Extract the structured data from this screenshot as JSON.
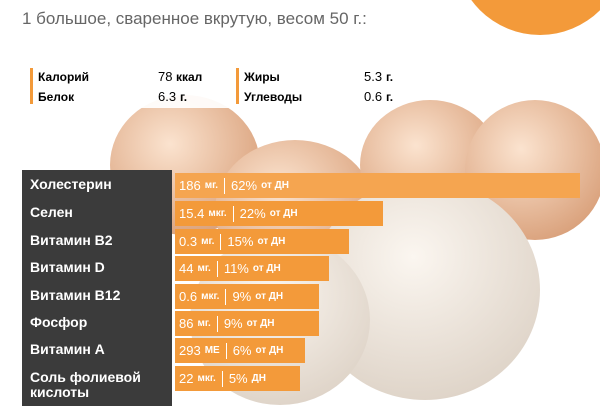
{
  "header": {
    "title": "1 большое, сваренное вкрутую, весом 50 г.:"
  },
  "summary": [
    {
      "label": "Калорий",
      "value": 78,
      "unit": "ккал"
    },
    {
      "label": "Белок",
      "value": 6.3,
      "unit": "г."
    },
    {
      "label": "Жиры",
      "value": 5.3,
      "unit": "г."
    },
    {
      "label": "Углеводы",
      "value": 0.6,
      "unit": "г."
    }
  ],
  "chart_data": {
    "type": "bar",
    "categories": [
      "Холестерин",
      "Селен",
      "Витамин B2",
      "Витамин D",
      "Витамин B12",
      "Фосфор",
      "Витамин A",
      "Соль фолиевой кислоты"
    ],
    "values": [
      62,
      22,
      15,
      11,
      9,
      9,
      6,
      5
    ],
    "value_labels": [
      "62%",
      "22%",
      "15%",
      "11%",
      "9%",
      "9%",
      "6%",
      "5%"
    ],
    "amounts": [
      186,
      15.4,
      0.3,
      44,
      0.6,
      86,
      293,
      22
    ],
    "units": [
      "мг.",
      "мкг.",
      "мг.",
      "мг.",
      "мкг.",
      "мг.",
      "МЕ",
      "мкг."
    ],
    "suffixes": [
      "от ДН",
      "от ДН",
      "от ДН",
      "от ДН",
      "от ДН",
      "от ДН",
      "от ДН",
      "ДН"
    ],
    "color": "#f39a3a"
  }
}
